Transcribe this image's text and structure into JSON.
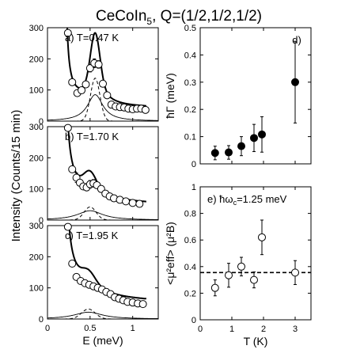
{
  "figure": {
    "title": {
      "prefix": "CeCoIn",
      "sub": "5",
      "suffix": ", Q=(1/2,1/2,1/2)"
    }
  },
  "chart_data": [
    {
      "id": "a",
      "type": "scatter",
      "label": "a) T=0.47 K",
      "xlabel": "",
      "ylabel": "",
      "xlim": [
        0,
        1.3
      ],
      "ylim": [
        0,
        300
      ],
      "yticks": [
        0,
        100,
        200,
        300
      ],
      "xticks": [
        0,
        0.5,
        1
      ],
      "xticklabels": [
        "",
        "",
        ""
      ],
      "markers": "open-circle",
      "points": [
        {
          "x": 0.24,
          "y": 283,
          "err": 0
        },
        {
          "x": 0.29,
          "y": 125,
          "err": 0
        },
        {
          "x": 0.35,
          "y": 90,
          "err": 0
        },
        {
          "x": 0.4,
          "y": 99,
          "err": 0
        },
        {
          "x": 0.45,
          "y": 118,
          "err": 0
        },
        {
          "x": 0.5,
          "y": 170,
          "err": 12
        },
        {
          "x": 0.55,
          "y": 186,
          "err": 14
        },
        {
          "x": 0.6,
          "y": 182,
          "err": 12
        },
        {
          "x": 0.65,
          "y": 120,
          "err": 0
        },
        {
          "x": 0.7,
          "y": 83,
          "err": 0
        },
        {
          "x": 0.75,
          "y": 53,
          "err": 0
        },
        {
          "x": 0.8,
          "y": 47,
          "err": 0
        },
        {
          "x": 0.85,
          "y": 45,
          "err": 0
        },
        {
          "x": 0.9,
          "y": 44,
          "err": 0
        },
        {
          "x": 0.95,
          "y": 40,
          "err": 0
        },
        {
          "x": 1.0,
          "y": 38,
          "err": 0
        },
        {
          "x": 1.05,
          "y": 40,
          "err": 0
        },
        {
          "x": 1.1,
          "y": 40,
          "err": 0
        },
        {
          "x": 1.15,
          "y": 36,
          "err": 0
        }
      ],
      "fit": {
        "A": 8,
        "x0": 0.2,
        "B": 38,
        "G_A": 138,
        "G_mu": 0.56,
        "G_s": 0.055,
        "L_A": 85,
        "L_mu": 0.56,
        "L_g": 0.11
      }
    },
    {
      "id": "b",
      "type": "scatter",
      "label": "b) T=1.70 K",
      "xlabel": "",
      "ylabel": "",
      "xlim": [
        0,
        1.3
      ],
      "ylim": [
        0,
        300
      ],
      "yticks": [
        0,
        100,
        200,
        300
      ],
      "xticks": [
        0,
        0.5,
        1
      ],
      "xticklabels": [
        "",
        "",
        ""
      ],
      "markers": "open-circle",
      "points": [
        {
          "x": 0.24,
          "y": 296,
          "err": 0
        },
        {
          "x": 0.29,
          "y": 163,
          "err": 0
        },
        {
          "x": 0.34,
          "y": 136,
          "err": 15
        },
        {
          "x": 0.38,
          "y": 120,
          "err": 0
        },
        {
          "x": 0.42,
          "y": 108,
          "err": 0
        },
        {
          "x": 0.46,
          "y": 105,
          "err": 0
        },
        {
          "x": 0.5,
          "y": 115,
          "err": 12
        },
        {
          "x": 0.54,
          "y": 118,
          "err": 12
        },
        {
          "x": 0.58,
          "y": 112,
          "err": 0
        },
        {
          "x": 0.63,
          "y": 100,
          "err": 0
        },
        {
          "x": 0.68,
          "y": 85,
          "err": 0
        },
        {
          "x": 0.73,
          "y": 76,
          "err": 0
        },
        {
          "x": 0.78,
          "y": 70,
          "err": 0
        },
        {
          "x": 0.85,
          "y": 65,
          "err": 0
        },
        {
          "x": 0.92,
          "y": 60,
          "err": 0
        },
        {
          "x": 1.0,
          "y": 55,
          "err": 0
        },
        {
          "x": 1.08,
          "y": 52,
          "err": 0
        }
      ],
      "fit": {
        "A": 13,
        "x0": 0.19,
        "B": 44,
        "G_A": 42,
        "G_mu": 0.5,
        "G_s": 0.07,
        "L_A": 30,
        "L_mu": 0.5,
        "L_g": 0.18
      }
    },
    {
      "id": "c",
      "type": "scatter",
      "label": "c) T=1.95 K",
      "xlabel": "E (meV)",
      "ylabel": "",
      "xlim": [
        0,
        1.3
      ],
      "ylim": [
        0,
        300
      ],
      "yticks": [
        0,
        100,
        200,
        300
      ],
      "xticks": [
        0,
        0.5,
        1
      ],
      "xticklabels": [
        "0",
        "0.5",
        "1"
      ],
      "markers": "open-circle",
      "points": [
        {
          "x": 0.24,
          "y": 296,
          "err": 0
        },
        {
          "x": 0.29,
          "y": 178,
          "err": 0
        },
        {
          "x": 0.34,
          "y": 135,
          "err": 0
        },
        {
          "x": 0.39,
          "y": 122,
          "err": 0
        },
        {
          "x": 0.44,
          "y": 115,
          "err": 0
        },
        {
          "x": 0.49,
          "y": 110,
          "err": 0
        },
        {
          "x": 0.54,
          "y": 105,
          "err": 0
        },
        {
          "x": 0.59,
          "y": 100,
          "err": 0
        },
        {
          "x": 0.64,
          "y": 95,
          "err": 0
        },
        {
          "x": 0.69,
          "y": 87,
          "err": 0
        },
        {
          "x": 0.74,
          "y": 80,
          "err": 0
        },
        {
          "x": 0.79,
          "y": 70,
          "err": 0
        },
        {
          "x": 0.84,
          "y": 65,
          "err": 0
        },
        {
          "x": 0.89,
          "y": 60,
          "err": 0
        },
        {
          "x": 0.94,
          "y": 55,
          "err": 0
        },
        {
          "x": 1.0,
          "y": 53,
          "err": 0
        },
        {
          "x": 1.06,
          "y": 50,
          "err": 0
        },
        {
          "x": 1.12,
          "y": 48,
          "err": 0
        }
      ],
      "fit": {
        "A": 18,
        "x0": 0.18,
        "B": 45,
        "G_A": 32,
        "G_mu": 0.48,
        "G_s": 0.08,
        "L_A": 22,
        "L_mu": 0.48,
        "L_g": 0.2
      }
    },
    {
      "id": "d",
      "type": "scatter",
      "label": "d)",
      "xlabel": "",
      "ylabel": "ħΓ (meV)",
      "xlim": [
        0,
        3.5
      ],
      "ylim": [
        0,
        0.5
      ],
      "yticks": [
        0,
        0.1,
        0.2,
        0.3,
        0.4,
        0.5
      ],
      "yticklabels": [
        "0",
        "0.1",
        "0.2",
        "0.3",
        "0.4",
        "0.5"
      ],
      "xticks": [
        0,
        1,
        2,
        3
      ],
      "xticklabels": [
        "",
        "",
        "",
        ""
      ],
      "markers": "filled-circle",
      "points": [
        {
          "x": 0.47,
          "y": 0.04,
          "err": 0.025
        },
        {
          "x": 0.9,
          "y": 0.042,
          "err": 0.025
        },
        {
          "x": 1.3,
          "y": 0.065,
          "err": 0.035
        },
        {
          "x": 1.7,
          "y": 0.095,
          "err": 0.05
        },
        {
          "x": 1.95,
          "y": 0.108,
          "err": 0.065
        },
        {
          "x": 3.0,
          "y": 0.3,
          "err": 0.15
        }
      ]
    },
    {
      "id": "e",
      "type": "scatter",
      "label": "e) ħω",
      "label_sub": "c",
      "label_rest": "=1.25 meV",
      "xlabel": "T (K)",
      "ylabel": "<μ²eff> (μ²B)",
      "xlim": [
        0,
        3.5
      ],
      "ylim": [
        0,
        1
      ],
      "yticks": [
        0,
        0.2,
        0.4,
        0.6,
        0.8,
        1
      ],
      "yticklabels": [
        "0",
        "0.2",
        "0.4",
        "0.6",
        "0.8",
        "1"
      ],
      "xticks": [
        0,
        1,
        2,
        3
      ],
      "xticklabels": [
        "0",
        "1",
        "2",
        "3"
      ],
      "markers": "open-circle",
      "reference_line": 0.355,
      "points": [
        {
          "x": 0.47,
          "y": 0.24,
          "err": 0.06
        },
        {
          "x": 0.9,
          "y": 0.335,
          "err": 0.09
        },
        {
          "x": 1.3,
          "y": 0.4,
          "err": 0.07
        },
        {
          "x": 1.7,
          "y": 0.3,
          "err": 0.06
        },
        {
          "x": 1.95,
          "y": 0.62,
          "err": 0.13
        },
        {
          "x": 3.0,
          "y": 0.355,
          "err": 0.09
        }
      ]
    }
  ],
  "shared": {
    "left_ylabel": "Intensity (Counts/15 min)"
  }
}
